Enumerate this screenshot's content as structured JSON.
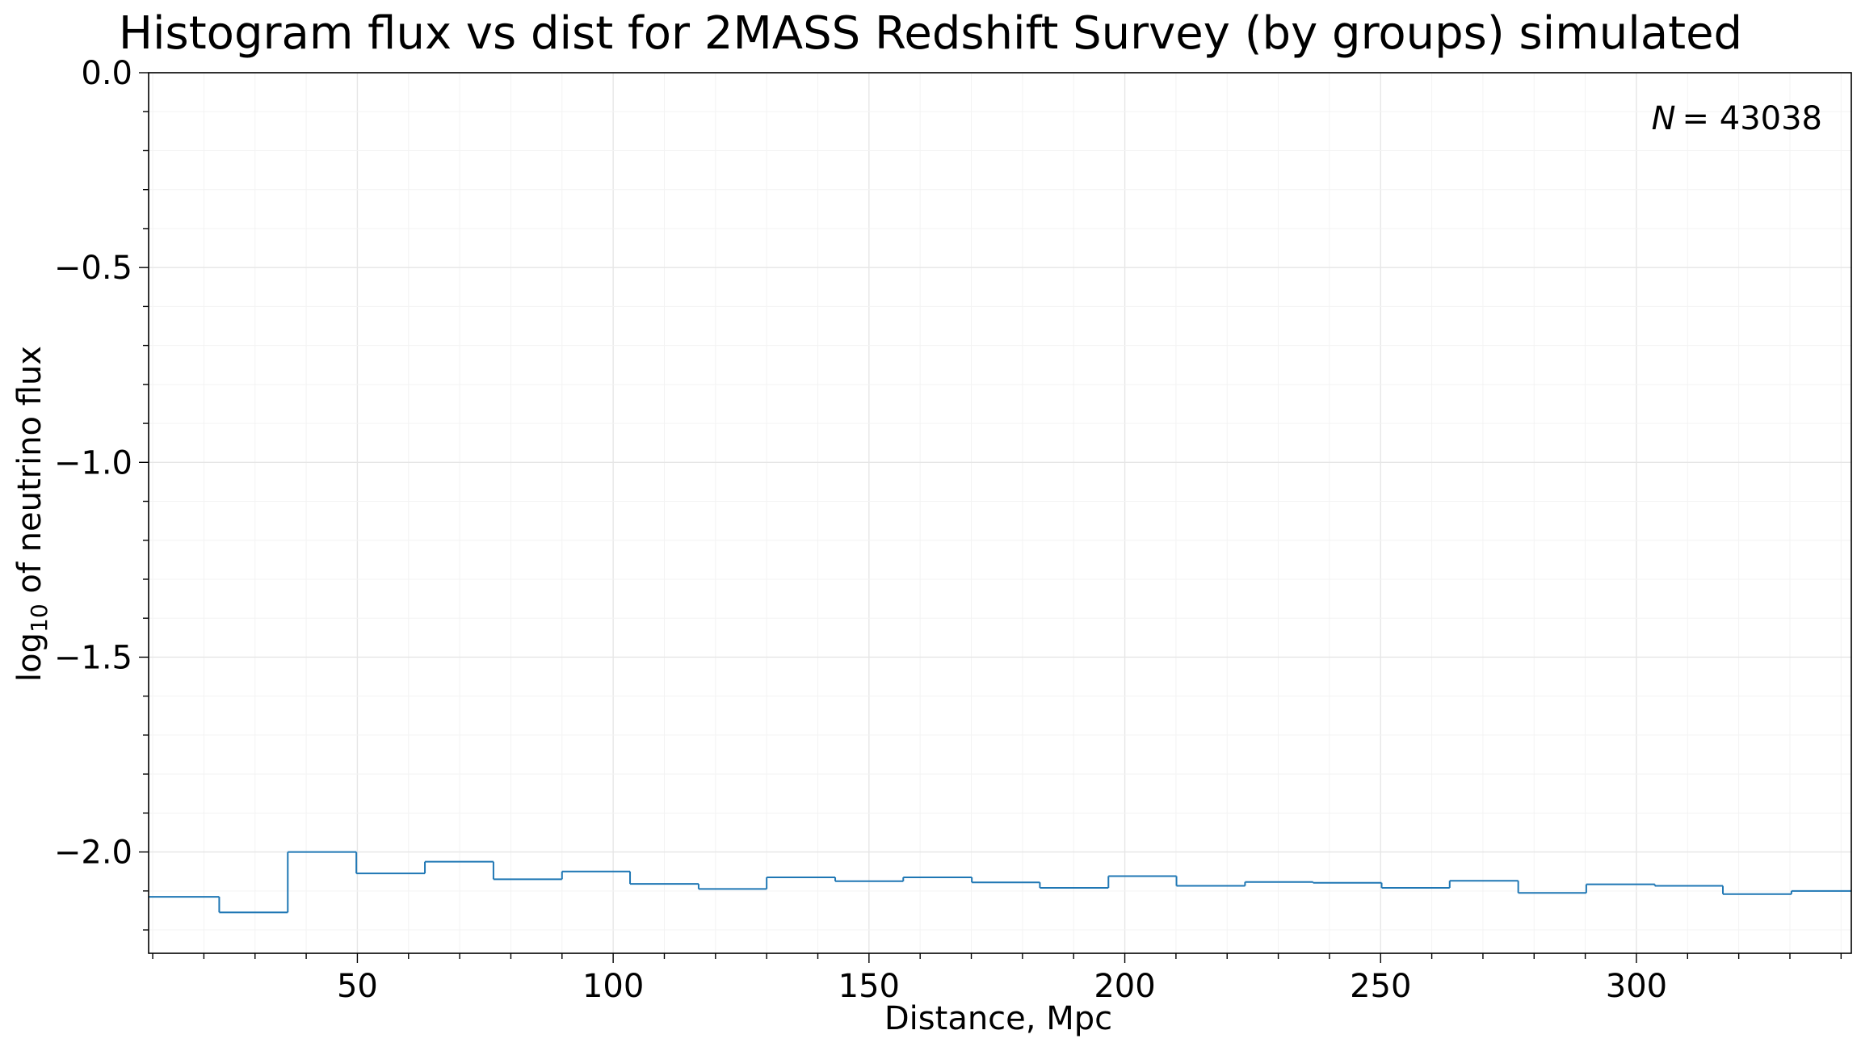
{
  "chart_data": {
    "type": "step",
    "title": "Histogram flux vs dist for 2MASS Redshift Survey (by groups) simulated",
    "xlabel": "Distance, Mpc",
    "ylabel_main": "log",
    "ylabel_sub": "10",
    "ylabel_rest": " of neutrino flux",
    "annotation_var": "N",
    "annotation_value": "= 43038",
    "xlim": [
      9.2,
      342
    ],
    "ylim": [
      -2.26,
      0.0
    ],
    "xticks": [
      50,
      100,
      150,
      200,
      250,
      300
    ],
    "xtick_labels": [
      "50",
      "100",
      "150",
      "200",
      "250",
      "300"
    ],
    "yticks": [
      0.0,
      -0.5,
      -1.0,
      -1.5,
      -2.0
    ],
    "ytick_labels": [
      "0.0",
      "−0.5",
      "−1.0",
      "−1.5",
      "−2.0"
    ],
    "grid": true,
    "line_color": "#1f77b4",
    "bin_edges": [
      9.2,
      23.0,
      36.4,
      49.8,
      63.2,
      76.6,
      90.0,
      103.3,
      116.7,
      130.0,
      143.4,
      156.7,
      170.1,
      183.4,
      196.8,
      210.1,
      223.5,
      236.8,
      250.2,
      263.5,
      276.9,
      290.2,
      303.6,
      316.9,
      330.3,
      342.0
    ],
    "values": [
      -2.115,
      -2.155,
      -2.0,
      -2.055,
      -2.025,
      -2.07,
      -2.05,
      -2.082,
      -2.095,
      -2.065,
      -2.075,
      -2.065,
      -2.078,
      -2.092,
      -2.062,
      -2.087,
      -2.077,
      -2.079,
      -2.092,
      -2.074,
      -2.105,
      -2.083,
      -2.087,
      -2.108,
      -2.1
    ]
  }
}
